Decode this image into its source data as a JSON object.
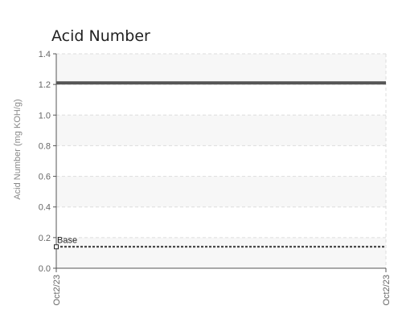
{
  "chart_data": {
    "type": "line",
    "title": "Acid Number",
    "xlabel": "",
    "ylabel": "Acid Number (mg KOH/g)",
    "ylim": [
      0,
      1.4
    ],
    "yticks": [
      0.0,
      0.2,
      0.4,
      0.6,
      0.8,
      1.0,
      1.2,
      1.4
    ],
    "ytick_labels": [
      "0.0",
      "0.2",
      "0.4",
      "0.6",
      "0.8",
      "1.0",
      "1.2",
      "1.4"
    ],
    "x": [
      "Oct2/23",
      "Oct2/23"
    ],
    "grid": true,
    "series": [
      {
        "values": [
          1.21,
          1.21
        ],
        "color": "#555555",
        "style": "solid"
      },
      {
        "name": "Base",
        "values": [
          0.14,
          0.14
        ],
        "color": "#333333",
        "style": "dashed"
      }
    ],
    "annotations": [
      {
        "text": "Base",
        "x": "Oct2/23",
        "y": 0.14
      }
    ]
  }
}
